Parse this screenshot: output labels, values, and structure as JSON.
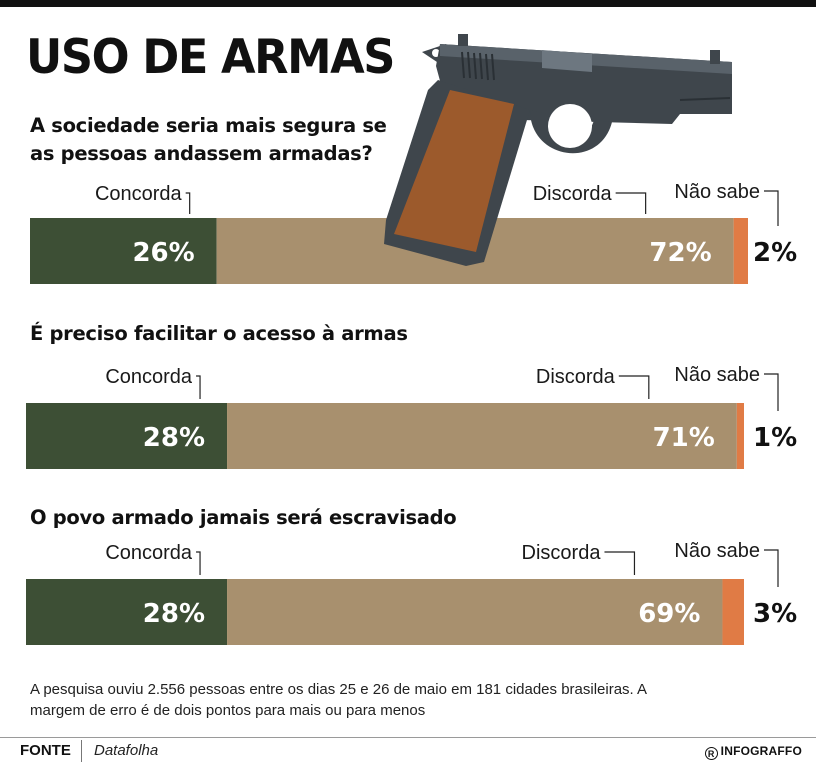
{
  "title": "USO DE ARMAS",
  "colors": {
    "concorda": "#3d4f35",
    "discorda": "#a8906e",
    "nao_sabe": "#e07b45",
    "gun_body": "#3f464c",
    "gun_grip": "#9c5a2c"
  },
  "chart_data": [
    {
      "type": "bar",
      "title": "A sociedade seria mais segura se as pessoas andassem armadas?",
      "categories": [
        "Concorda",
        "Discorda",
        "Não sabe"
      ],
      "values": [
        26,
        72,
        2
      ],
      "labels": [
        "26%",
        "72%",
        "2%"
      ],
      "unit": "%"
    },
    {
      "type": "bar",
      "title": "É preciso facilitar o acesso à armas",
      "categories": [
        "Concorda",
        "Discorda",
        "Não sabe"
      ],
      "values": [
        28,
        71,
        1
      ],
      "labels": [
        "28%",
        "71%",
        "1%"
      ],
      "unit": "%"
    },
    {
      "type": "bar",
      "title": "O povo armado jamais será escravisado",
      "categories": [
        "Concorda",
        "Discorda",
        "Não sabe"
      ],
      "values": [
        28,
        69,
        3
      ],
      "labels": [
        "28%",
        "69%",
        "3%"
      ],
      "unit": "%"
    }
  ],
  "note": "A pesquisa ouviu 2.556 pessoas entre os dias 25 e 26 de maio em 181 cidades brasileiras. A margem de erro é de dois pontos para mais ou para menos",
  "source": {
    "label": "FONTE",
    "name": "Datafolha"
  },
  "brand": {
    "mark": "R",
    "name": "INFOGRAFFO"
  },
  "illustration": "pistol-icon"
}
